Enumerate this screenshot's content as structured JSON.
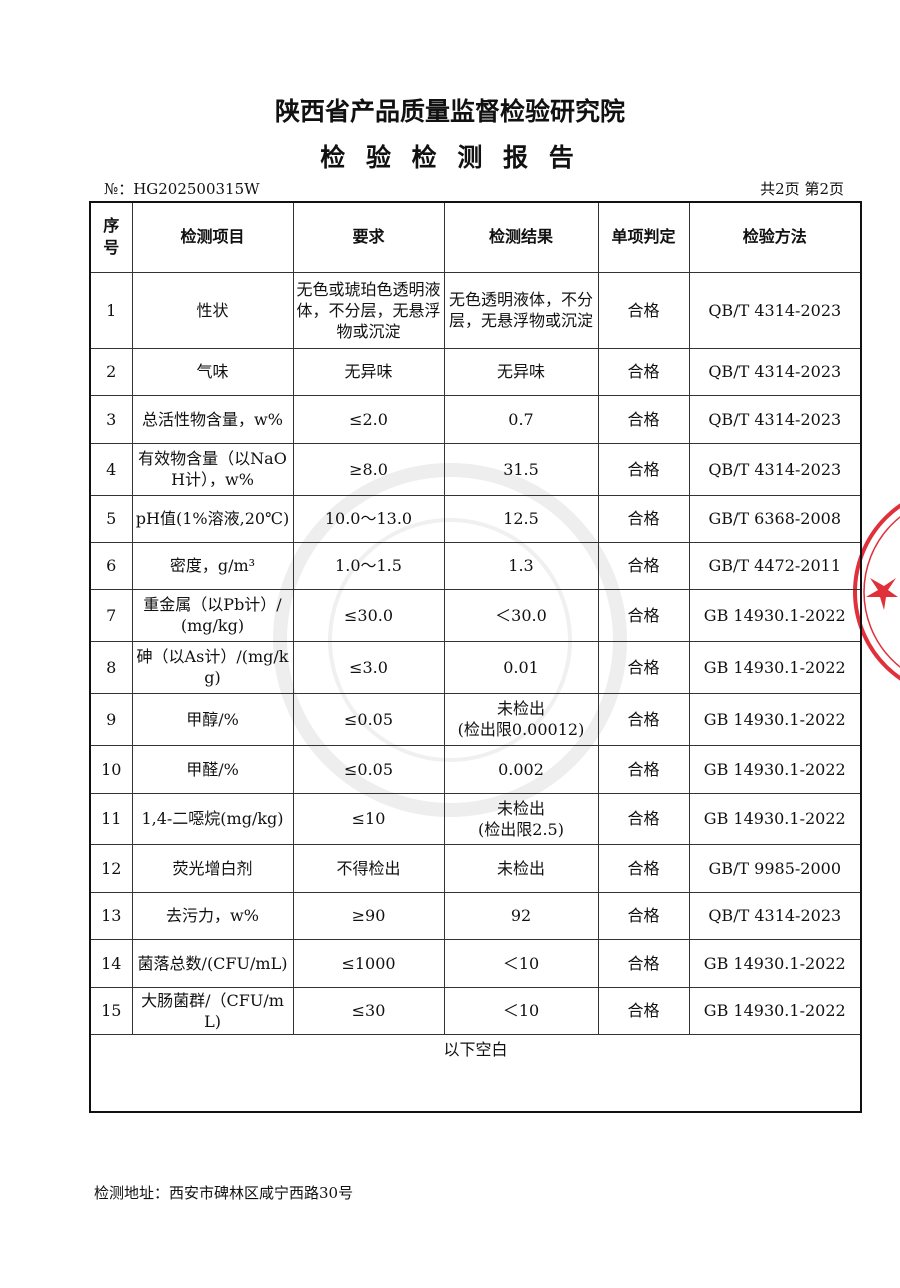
{
  "header": {
    "title": "陕西省产品质量监督检验研究院",
    "subtitle": "检 验 检 测 报 告",
    "report_no": "№：HG202500315W",
    "page_info": "共2页 第2页"
  },
  "table": {
    "header": [
      "序号",
      "检测项目",
      "要求",
      "检测结果",
      "单项判定",
      "检验方法"
    ],
    "rows": [
      [
        "1",
        "性状",
        "无色或琥珀色透明液体，不分层，无悬浮物或沉淀",
        "无色透明液体，不分层，无悬浮物或沉淀",
        "合格",
        "QB/T 4314-2023"
      ],
      [
        "2",
        "气味",
        "无异味",
        "无异味",
        "合格",
        "QB/T 4314-2023"
      ],
      [
        "3",
        "总活性物含量，w%",
        "≤2.0",
        "0.7",
        "合格",
        "QB/T 4314-2023"
      ],
      [
        "4",
        "有效物含量（以NaOH计），w%",
        "≥8.0",
        "31.5",
        "合格",
        "QB/T 4314-2023"
      ],
      [
        "5",
        "pH值(1%溶液,20℃)",
        "10.0～13.0",
        "12.5",
        "合格",
        "GB/T 6368-2008"
      ],
      [
        "6",
        "密度，g/m³",
        "1.0～1.5",
        "1.3",
        "合格",
        "GB/T 4472-2011"
      ],
      [
        "7",
        "重金属（以Pb计）/(mg/kg)",
        "≤30.0",
        "＜30.0",
        "合格",
        "GB 14930.1-2022"
      ],
      [
        "8",
        "砷（以As计）/(mg/kg)",
        "≤3.0",
        "0.01",
        "合格",
        "GB 14930.1-2022"
      ],
      [
        "9",
        "甲醇/%",
        "≤0.05",
        "未检出\n(检出限0.00012)",
        "合格",
        "GB 14930.1-2022"
      ],
      [
        "10",
        "甲醛/%",
        "≤0.05",
        "0.002",
        "合格",
        "GB 14930.1-2022"
      ],
      [
        "11",
        "1,4-二噁烷(mg/kg)",
        "≤10",
        "未检出\n(检出限2.5)",
        "合格",
        "GB 14930.1-2022"
      ],
      [
        "12",
        "荧光增白剂",
        "不得检出",
        "未检出",
        "合格",
        "GB/T 9985-2000"
      ],
      [
        "13",
        "去污力，w%",
        "≥90",
        "92",
        "合格",
        "QB/T 4314-2023"
      ],
      [
        "14",
        "菌落总数/(CFU/mL)",
        "≤1000",
        "＜10",
        "合格",
        "GB 14930.1-2022"
      ],
      [
        "15",
        "大肠菌群/（CFU/mL)",
        "≤30",
        "＜10",
        "合格",
        "GB 14930.1-2022"
      ]
    ],
    "note": "以下空白"
  },
  "footer": {
    "address": "检测地址：西安市碑林区咸宁西路30号"
  }
}
